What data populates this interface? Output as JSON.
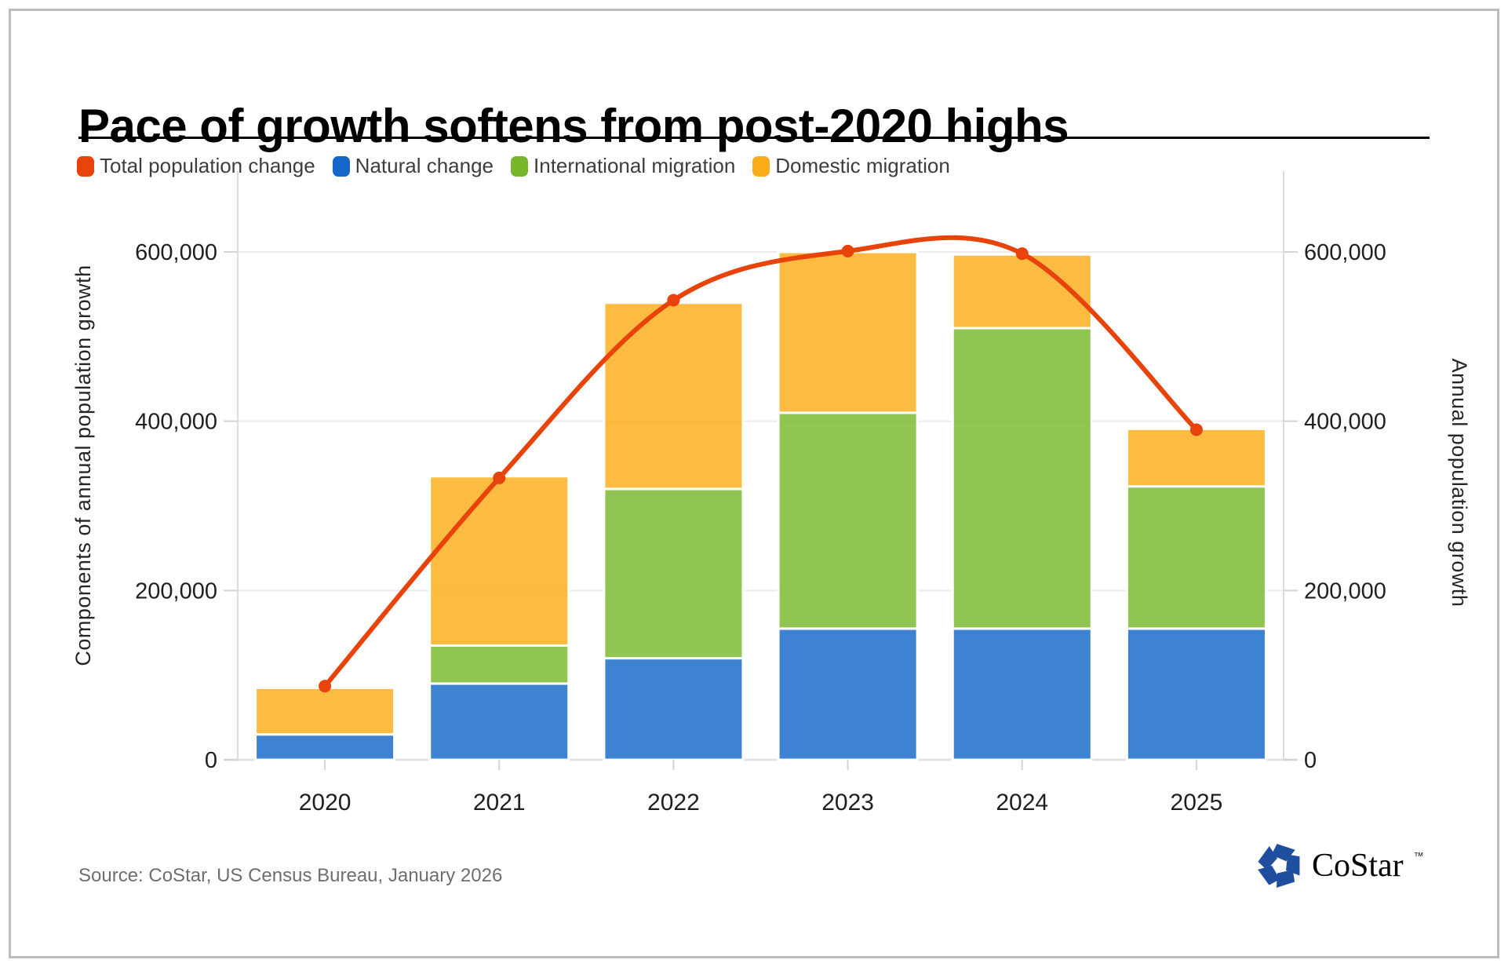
{
  "title": "Pace of growth softens from post-2020 highs",
  "source": "Source: CoStar, US Census Bureau, January 2026",
  "logo": {
    "text": "CoStar",
    "tm": "™",
    "color": "#1F4E9E"
  },
  "colors": {
    "line": "#E8430A",
    "natural_change": "#1467C8",
    "international_migration": "#76B82A",
    "domestic_migration": "#FBAD19",
    "grid": "#ECECEC",
    "axis": "#DCDCDC",
    "tick": "#D4D4D4",
    "tick_label": "#1F1F1F",
    "axis_title": "#262626"
  },
  "chart_data": {
    "type": "combo-stacked-bar-line",
    "categories": [
      "2020",
      "2021",
      "2022",
      "2023",
      "2024",
      "2025"
    ],
    "series": [
      {
        "name": "Total population change",
        "type": "line",
        "color": "#E8430A",
        "values": [
          87000,
          333000,
          543000,
          601000,
          598000,
          390000
        ]
      },
      {
        "name": "Natural change",
        "type": "bar",
        "color": "#1467C8",
        "values": [
          30000,
          90000,
          120000,
          155000,
          155000,
          155000
        ]
      },
      {
        "name": "International migration",
        "type": "bar",
        "color": "#76B82A",
        "values": [
          0,
          45000,
          200000,
          255000,
          355000,
          168000
        ]
      },
      {
        "name": "Domestic migration",
        "type": "bar",
        "color": "#FBAD19",
        "values": [
          55000,
          200000,
          220000,
          190000,
          87000,
          68000
        ]
      }
    ],
    "y_axis": {
      "left_label": "Components of annual population growth",
      "right_label": "Annual population growth",
      "ticks": [
        {
          "value": 0,
          "label": "0"
        },
        {
          "value": 200000,
          "label": "200,000"
        },
        {
          "value": 400000,
          "label": "400,000"
        },
        {
          "value": 600000,
          "label": "600,000"
        }
      ],
      "range": [
        0,
        690000
      ]
    },
    "grid": true,
    "legend_position": "top"
  }
}
